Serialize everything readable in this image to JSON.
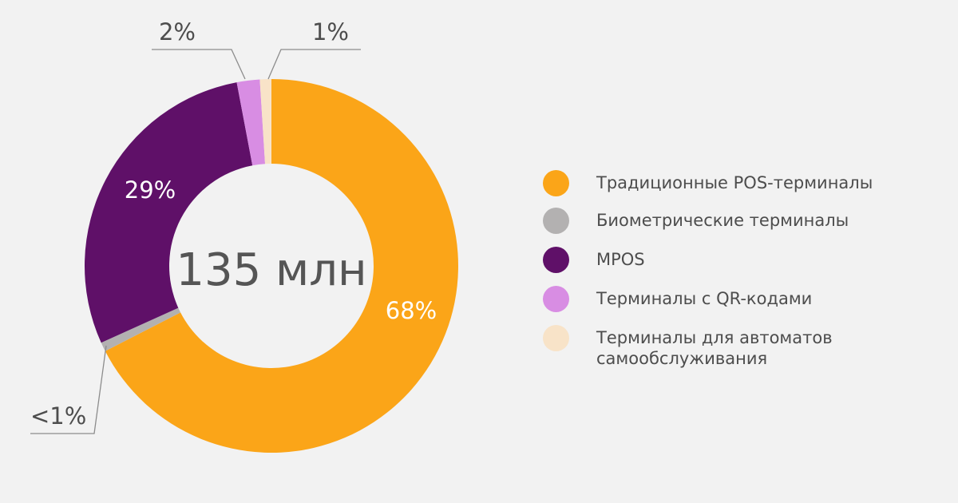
{
  "chart_data": {
    "type": "pie",
    "center_label": "135 млн",
    "slices": [
      {
        "name": "Традиционные POS-терминалы",
        "value": 68,
        "label": "68%",
        "color": "#fba518"
      },
      {
        "name": "Биометрические терминалы",
        "value": 0.8,
        "label": "<1%",
        "color": "#b3b1b1"
      },
      {
        "name": "MPOS",
        "value": 29,
        "label": "29%",
        "color": "#5f1068"
      },
      {
        "name": "Терминалы с QR-кодами",
        "value": 2,
        "label": "2%",
        "color": "#d88de3"
      },
      {
        "name": "Терминалы для автоматов\nсамообслуживания",
        "value": 1,
        "label": "1%",
        "color": "#f8e3c8"
      }
    ]
  }
}
